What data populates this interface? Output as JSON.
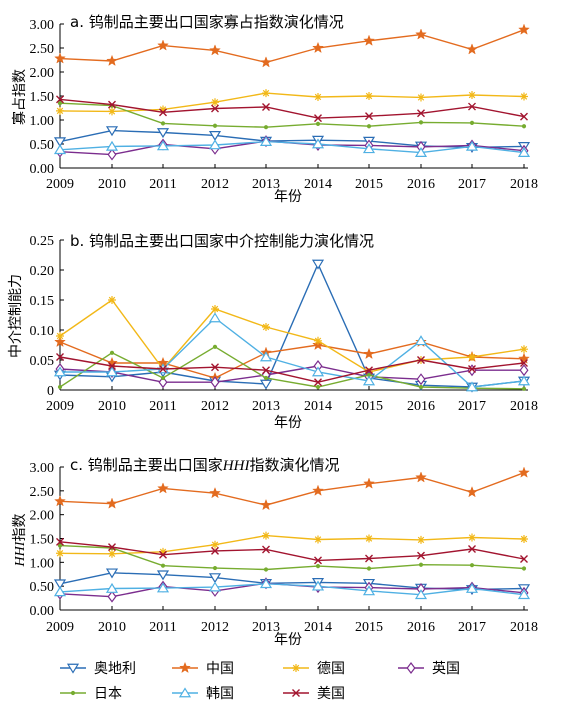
{
  "years": [
    "2009",
    "2010",
    "2011",
    "2012",
    "2013",
    "2014",
    "2015",
    "2016",
    "2017",
    "2018"
  ],
  "series_style": [
    {
      "key": "austria",
      "color": "#2a6db5",
      "marker": "tri-down"
    },
    {
      "key": "china",
      "color": "#e36b1f",
      "marker": "star"
    },
    {
      "key": "germany",
      "color": "#f2b818",
      "marker": "asterisk"
    },
    {
      "key": "uk",
      "color": "#7b2d8e",
      "marker": "diamond"
    },
    {
      "key": "japan",
      "color": "#77ac30",
      "marker": "dot"
    },
    {
      "key": "korea",
      "color": "#4fb0e3",
      "marker": "tri-up"
    },
    {
      "key": "usa",
      "color": "#a2142f",
      "marker": "x"
    }
  ],
  "legend": [
    {
      "key": "austria",
      "label": "奥地利"
    },
    {
      "key": "china",
      "label": "中国"
    },
    {
      "key": "germany",
      "label": "德国"
    },
    {
      "key": "uk",
      "label": "英国"
    },
    {
      "key": "japan",
      "label": "日本"
    },
    {
      "key": "korea",
      "label": "韩国"
    },
    {
      "key": "usa",
      "label": "美国"
    }
  ],
  "chart_data": [
    {
      "type": "line",
      "title": "a. 钨制品主要出口国家寡占指数演化情况",
      "xlabel": "年份",
      "ylabel": "寡占指数",
      "ylim": [
        0,
        3.0
      ],
      "yticks": [
        "0.00",
        "0.50",
        "1.00",
        "1.50",
        "2.00",
        "2.50",
        "3.00"
      ],
      "x": [
        "2009",
        "2010",
        "2011",
        "2012",
        "2013",
        "2014",
        "2015",
        "2016",
        "2017",
        "2018"
      ],
      "series": [
        {
          "key": "austria",
          "name": "奥地利",
          "values": [
            0.55,
            0.78,
            0.74,
            0.68,
            0.56,
            0.58,
            0.56,
            0.46,
            0.43,
            0.45
          ]
        },
        {
          "key": "china",
          "name": "中国",
          "values": [
            2.28,
            2.23,
            2.55,
            2.45,
            2.2,
            2.5,
            2.65,
            2.78,
            2.47,
            2.88
          ]
        },
        {
          "key": "germany",
          "name": "德国",
          "values": [
            1.19,
            1.18,
            1.22,
            1.37,
            1.56,
            1.48,
            1.5,
            1.47,
            1.52,
            1.49
          ]
        },
        {
          "key": "uk",
          "name": "英国",
          "values": [
            0.34,
            0.28,
            0.49,
            0.4,
            0.56,
            0.48,
            0.47,
            0.44,
            0.47,
            0.36
          ]
        },
        {
          "key": "japan",
          "name": "日本",
          "values": [
            1.35,
            1.3,
            0.93,
            0.88,
            0.85,
            0.92,
            0.87,
            0.95,
            0.94,
            0.87
          ]
        },
        {
          "key": "korea",
          "name": "韩国",
          "values": [
            0.38,
            0.45,
            0.46,
            0.48,
            0.55,
            0.5,
            0.4,
            0.32,
            0.45,
            0.32
          ]
        },
        {
          "key": "usa",
          "name": "美国",
          "values": [
            1.43,
            1.32,
            1.16,
            1.24,
            1.27,
            1.04,
            1.08,
            1.14,
            1.28,
            1.07
          ]
        }
      ]
    },
    {
      "type": "line",
      "title": "b. 钨制品主要出口国家中介控制能力演化情况",
      "xlabel": "年份",
      "ylabel": "中介控制能力",
      "ylim": [
        0,
        0.25
      ],
      "yticks": [
        "0",
        "0.05",
        "0.10",
        "0.15",
        "0.20",
        "0.25"
      ],
      "x": [
        "2009",
        "2010",
        "2011",
        "2012",
        "2013",
        "2014",
        "2015",
        "2016",
        "2017",
        "2018"
      ],
      "series": [
        {
          "key": "austria",
          "name": "奥地利",
          "values": [
            0.025,
            0.022,
            0.03,
            0.015,
            0.01,
            0.21,
            0.02,
            0.008,
            0.005,
            0.015
          ]
        },
        {
          "key": "china",
          "name": "中国",
          "values": [
            0.08,
            0.045,
            0.045,
            0.02,
            0.062,
            0.075,
            0.06,
            0.08,
            0.055,
            0.052
          ]
        },
        {
          "key": "germany",
          "name": "德国",
          "values": [
            0.09,
            0.15,
            0.035,
            0.135,
            0.105,
            0.082,
            0.03,
            0.05,
            0.055,
            0.068
          ]
        },
        {
          "key": "uk",
          "name": "英国",
          "values": [
            0.035,
            0.03,
            0.013,
            0.013,
            0.025,
            0.04,
            0.022,
            0.018,
            0.033,
            0.033
          ]
        },
        {
          "key": "japan",
          "name": "日本",
          "values": [
            0.005,
            0.062,
            0.02,
            0.072,
            0.02,
            0.005,
            0.025,
            0.005,
            0.003,
            0.002
          ]
        },
        {
          "key": "korea",
          "name": "韩国",
          "values": [
            0.03,
            0.03,
            0.035,
            0.12,
            0.055,
            0.03,
            0.015,
            0.082,
            0.005,
            0.015
          ]
        },
        {
          "key": "usa",
          "name": "美国",
          "values": [
            0.055,
            0.04,
            0.035,
            0.038,
            0.033,
            0.013,
            0.033,
            0.05,
            0.035,
            0.045
          ]
        }
      ]
    },
    {
      "type": "line",
      "title_main": "c. 钨制品主要出口国家",
      "title_em": "HHI",
      "title_rest": "指数演化情况",
      "xlabel": "年份",
      "ylabel_em": "HHI",
      "ylabel_rest": "指数",
      "ylim": [
        0,
        3.0
      ],
      "yticks": [
        "0.00",
        "0.50",
        "1.00",
        "1.50",
        "2.00",
        "2.50",
        "3.00"
      ],
      "x": [
        "2009",
        "2010",
        "2011",
        "2012",
        "2013",
        "2014",
        "2015",
        "2016",
        "2017",
        "2018"
      ],
      "series": [
        {
          "key": "austria",
          "name": "奥地利",
          "values": [
            0.55,
            0.78,
            0.74,
            0.68,
            0.56,
            0.58,
            0.56,
            0.46,
            0.43,
            0.45
          ]
        },
        {
          "key": "china",
          "name": "中国",
          "values": [
            2.28,
            2.23,
            2.55,
            2.45,
            2.2,
            2.5,
            2.65,
            2.78,
            2.47,
            2.88
          ]
        },
        {
          "key": "germany",
          "name": "德国",
          "values": [
            1.19,
            1.18,
            1.22,
            1.37,
            1.56,
            1.48,
            1.5,
            1.47,
            1.52,
            1.49
          ]
        },
        {
          "key": "uk",
          "name": "英国",
          "values": [
            0.34,
            0.28,
            0.49,
            0.4,
            0.56,
            0.48,
            0.47,
            0.44,
            0.47,
            0.36
          ]
        },
        {
          "key": "japan",
          "name": "日本",
          "values": [
            1.35,
            1.3,
            0.93,
            0.88,
            0.85,
            0.92,
            0.87,
            0.95,
            0.94,
            0.87
          ]
        },
        {
          "key": "korea",
          "name": "韩国",
          "values": [
            0.38,
            0.45,
            0.46,
            0.48,
            0.55,
            0.5,
            0.4,
            0.32,
            0.45,
            0.32
          ]
        },
        {
          "key": "usa",
          "name": "美国",
          "values": [
            1.43,
            1.32,
            1.16,
            1.24,
            1.27,
            1.04,
            1.08,
            1.14,
            1.28,
            1.07
          ]
        }
      ]
    }
  ]
}
